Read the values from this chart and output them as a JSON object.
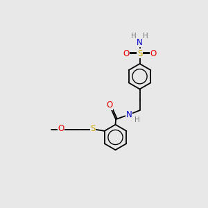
{
  "bg_color": "#e8e8e8",
  "C": "#000000",
  "H": "#7a7a7a",
  "N": "#0000cc",
  "O": "#ee0000",
  "S": "#ccaa00",
  "bond_lw": 1.3,
  "font_size": 8.5,
  "ring_r": 0.62
}
